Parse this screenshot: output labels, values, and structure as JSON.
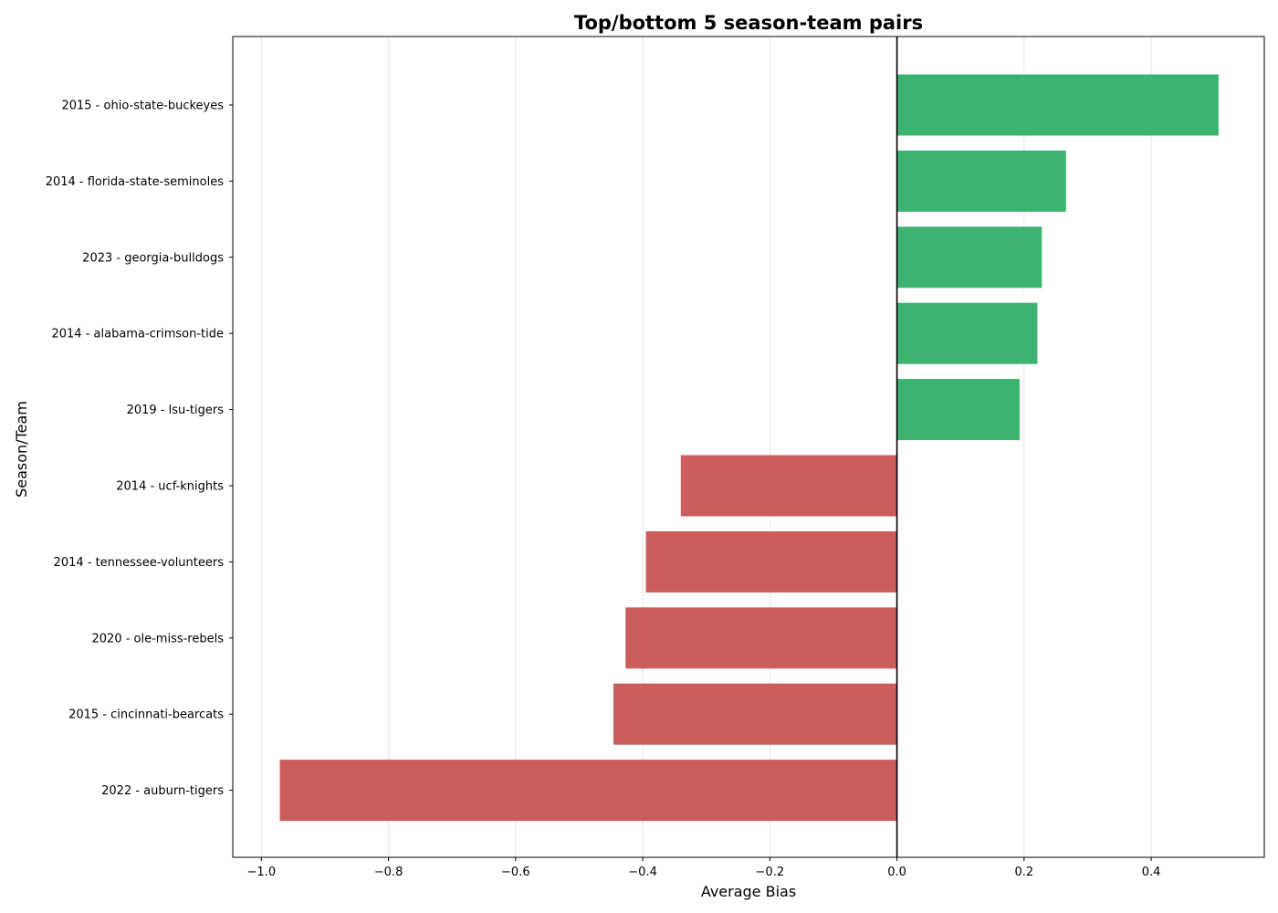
{
  "chart_data": {
    "type": "bar",
    "orientation": "horizontal",
    "title": "Top/bottom 5 season-team pairs",
    "xlabel": "Average Bias",
    "ylabel": "Season/Team",
    "categories": [
      "2015 - ohio-state-buckeyes",
      "2014 - florida-state-seminoles",
      "2023 - georgia-bulldogs",
      "2014 - alabama-crimson-tide",
      "2019 - lsu-tigers",
      "2014 - ucf-knights",
      "2014 - tennessee-volunteers",
      "2020 - ole-miss-rebels",
      "2015 - cincinnati-bearcats",
      "2022 - auburn-tigers"
    ],
    "values": [
      0.506,
      0.266,
      0.228,
      0.221,
      0.193,
      -0.34,
      -0.395,
      -0.427,
      -0.446,
      -0.971
    ],
    "xlim": [
      -1.045,
      0.578
    ],
    "xticks": [
      -1.0,
      -0.8,
      -0.6,
      -0.4,
      -0.2,
      0.0,
      0.2,
      0.4
    ],
    "xtick_labels": [
      "−1.0",
      "−0.8",
      "−0.6",
      "−0.4",
      "−0.2",
      "0.0",
      "0.2",
      "0.4"
    ],
    "grid": "x-axis",
    "colors": {
      "positive": "#3cb371",
      "negative": "#cd5c5c",
      "zero_line": "#000000",
      "grid": "#e6e6e6"
    }
  }
}
